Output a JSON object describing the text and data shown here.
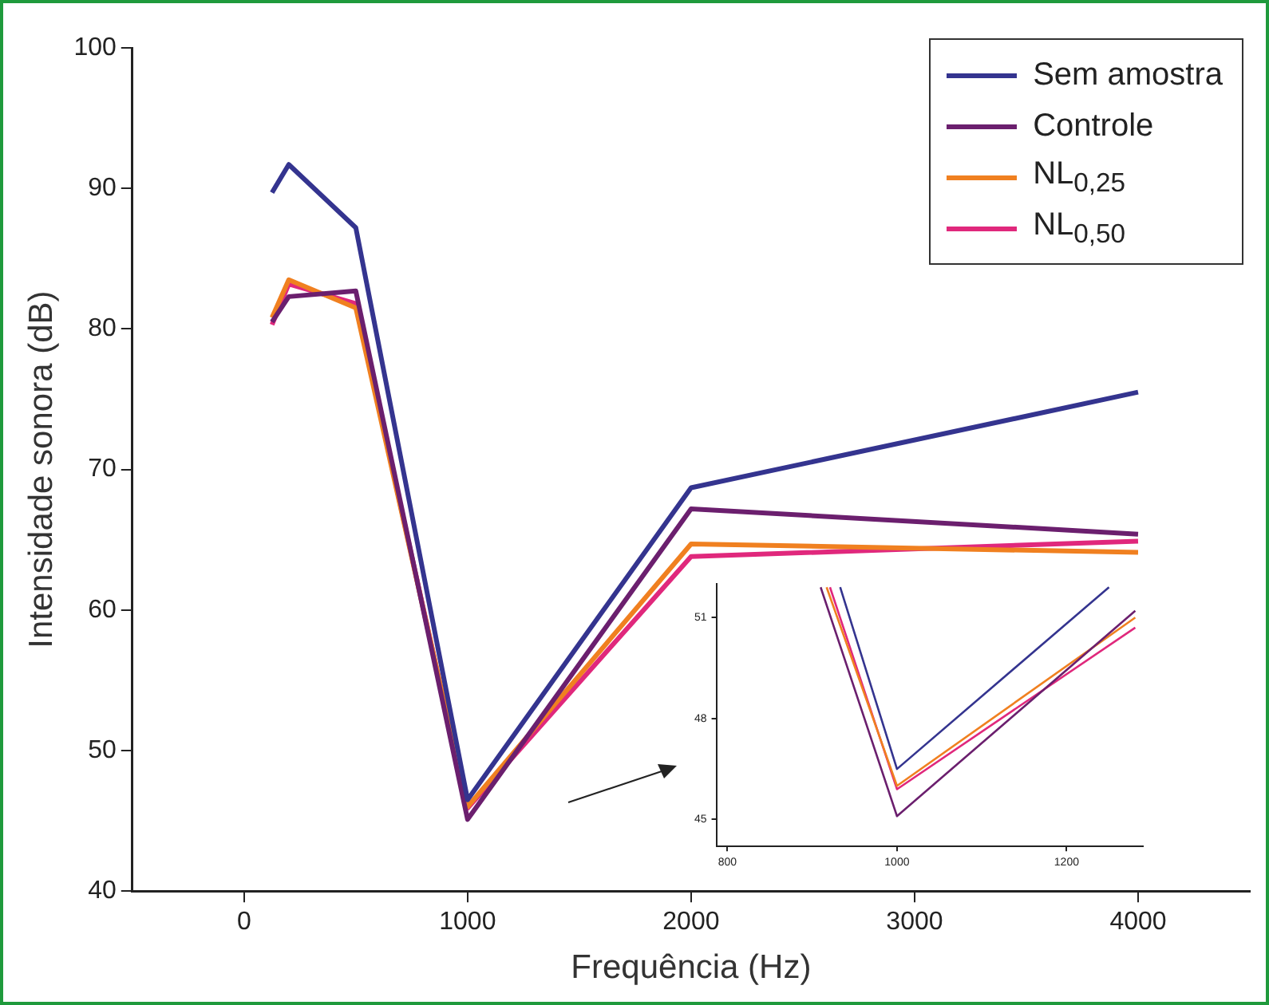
{
  "chart_data": [
    {
      "type": "line",
      "xlabel": "Frequência (Hz)",
      "ylabel": "Intensidade sonora (dB)",
      "x": [
        125,
        200,
        500,
        1000,
        2000,
        4000
      ],
      "xlim": [
        -500,
        4500
      ],
      "xticks": [
        0,
        1000,
        2000,
        3000,
        4000
      ],
      "ylim": [
        40,
        100
      ],
      "yticks": [
        40,
        50,
        60,
        70,
        80,
        90,
        100
      ],
      "grid": false,
      "legend": "top right",
      "marker": "none",
      "line_style": "solid",
      "series": [
        {
          "name": "Sem amostra",
          "color": "#34348f",
          "values": [
            89.7,
            91.7,
            87.2,
            46.5,
            68.7,
            75.5
          ]
        },
        {
          "name": "Controle",
          "color": "#6b1f6e",
          "values": [
            80.5,
            82.3,
            82.7,
            45.1,
            67.2,
            65.4
          ]
        },
        {
          "name": "NL$_{0,25}$",
          "color": "#f08020",
          "values": [
            80.8,
            83.5,
            81.5,
            46.0,
            64.7,
            64.1
          ]
        },
        {
          "name": "NL$_{0,50}$",
          "color": "#e0287c",
          "values": [
            80.3,
            83.2,
            81.8,
            45.9,
            63.8,
            64.9
          ]
        }
      ]
    },
    {
      "type": "line",
      "xlim": [
        787,
        1290
      ],
      "xticks": [
        800,
        1000,
        1200
      ],
      "ylim": [
        44.2,
        52
      ],
      "yticks": [
        45,
        48,
        51
      ],
      "grid": false,
      "legend": false,
      "marker": "none",
      "line_style": "solid",
      "series": [
        {
          "color": "#34348f",
          "x": [
            933,
            1000,
            1250
          ],
          "values": [
            51.9,
            46.5,
            51.9
          ]
        },
        {
          "color": "#6b1f6e",
          "x": [
            910,
            1000,
            1281
          ],
          "values": [
            51.9,
            45.1,
            51.2
          ]
        },
        {
          "color": "#f08020",
          "x": [
            917,
            1000,
            1281
          ],
          "values": [
            51.9,
            46.0,
            51.0
          ]
        },
        {
          "color": "#e0287c",
          "x": [
            921,
            1000,
            1281
          ],
          "values": [
            51.9,
            45.9,
            50.7
          ]
        }
      ]
    }
  ]
}
